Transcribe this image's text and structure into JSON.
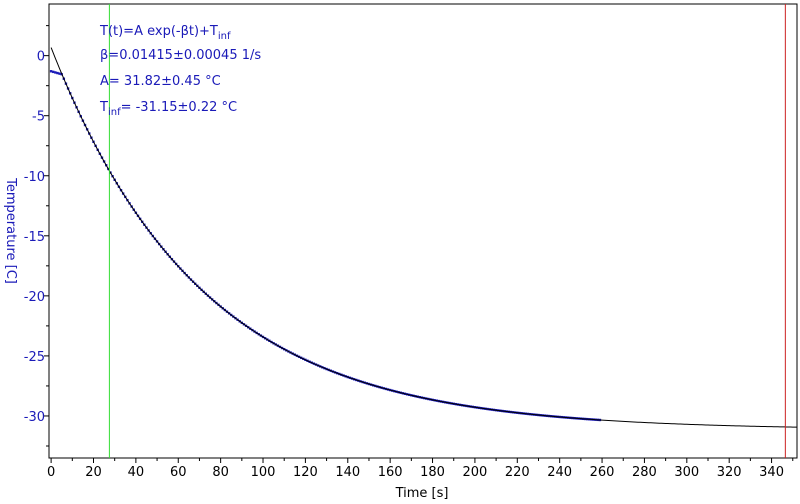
{
  "chart_data": {
    "type": "scatter",
    "title": "",
    "xlabel": "Time [s]",
    "ylabel": "Temperature [C]",
    "xlim": [
      -1,
      352
    ],
    "ylim": [
      -33.5,
      4.3
    ],
    "x_ticks": [
      0,
      20,
      40,
      60,
      80,
      100,
      120,
      140,
      160,
      180,
      200,
      220,
      240,
      260,
      280,
      300,
      320,
      340
    ],
    "y_ticks": [
      0,
      -5,
      -10,
      -15,
      -20,
      -25,
      -30
    ],
    "grid": false,
    "fit_model": {
      "A": 31.82,
      "beta": 0.01415,
      "T_inf": -31.15
    },
    "annotations": {
      "formula": {
        "main": "T(t)=A exp(-βt)+T",
        "sub": "inf"
      },
      "beta": "β=0.01415±0.00045 1/s",
      "amplitude": "A= 31.82±0.45 °C",
      "t_inf": {
        "prefix": "T",
        "sub": "inf",
        "rest": "= -31.15±0.22 °C"
      }
    },
    "cursors": [
      {
        "name": "green-cursor",
        "x": 27.5,
        "color": "#33dd33"
      },
      {
        "name": "red-cursor",
        "x": 346.5,
        "color": "#cc2222"
      }
    ],
    "colors": {
      "data": "#1a1ab8",
      "fit": "#000000",
      "axis_labels": "#1a1ab8",
      "frame": "#000000"
    },
    "series": [
      {
        "type": "scatter",
        "x_start": 0,
        "x_end": 259,
        "x_step": 1,
        "plateau": {
          "x_end": 6,
          "y_start": -1.3,
          "y_end": -1.6
        },
        "model": "fit",
        "values": []
      },
      {
        "type": "line",
        "model": "fit",
        "x_start": 0,
        "x_end": 352
      }
    ]
  }
}
